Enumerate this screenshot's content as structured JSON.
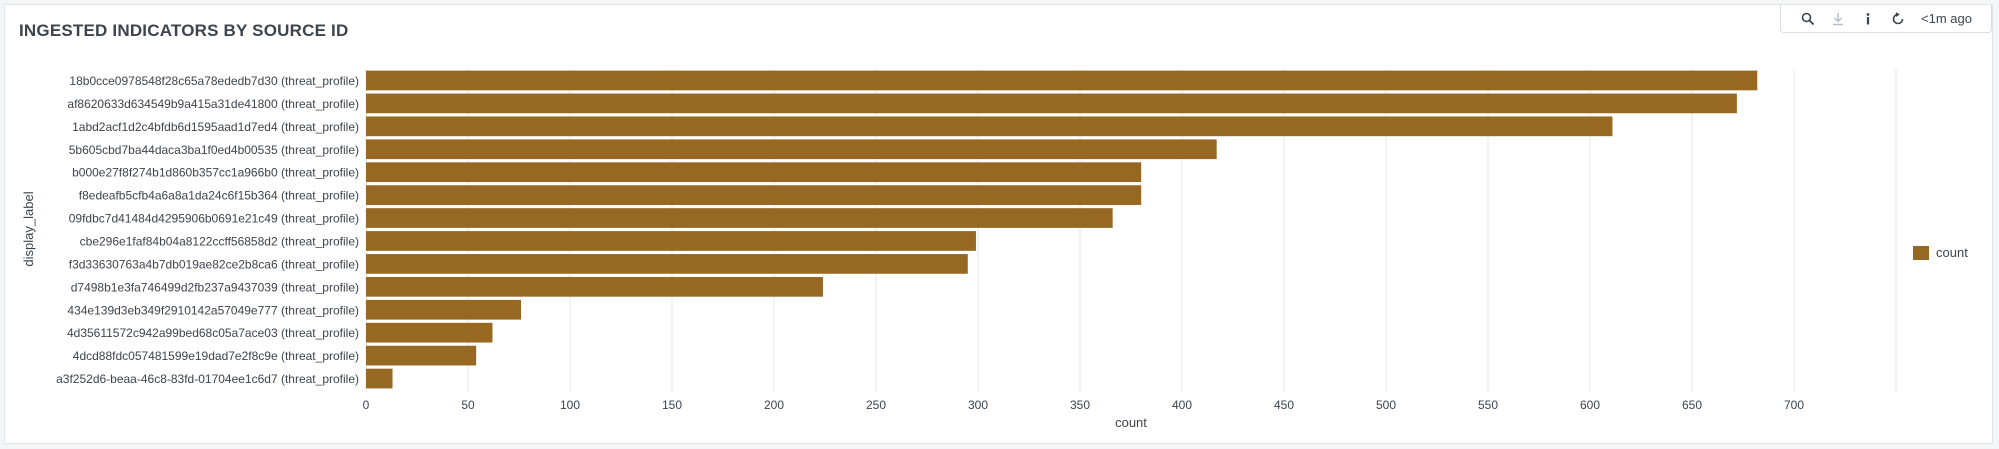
{
  "panel": {
    "title": "INGESTED INDICATORS BY SOURCE ID"
  },
  "toolbar": {
    "buttons": [
      "search-icon",
      "download-icon",
      "info-icon",
      "refresh-icon"
    ],
    "time_label": "<1m ago"
  },
  "colors": {
    "bar": "#976822",
    "grid": "#e4e6ea",
    "axis_text": "#3c444d"
  },
  "legend": {
    "label": "count"
  },
  "chart_data": {
    "type": "bar",
    "orientation": "horizontal",
    "title": "INGESTED INDICATORS BY SOURCE ID",
    "xlabel": "count",
    "ylabel": "display_label",
    "xlim": [
      0,
      750
    ],
    "xticks": [
      0,
      50,
      100,
      150,
      200,
      250,
      300,
      350,
      400,
      450,
      500,
      550,
      600,
      650,
      700
    ],
    "grid": "vertical",
    "legend_position": "right",
    "categories": [
      "18b0cce0978548f28c65a78ededb7d30 (threat_profile)",
      "af8620633d634549b9a415a31de41800 (threat_profile)",
      "1abd2acf1d2c4bfdb6d1595aad1d7ed4 (threat_profile)",
      "5b605cbd7ba44daca3ba1f0ed4b00535 (threat_profile)",
      "b000e27f8f274b1d860b357cc1a966b0 (threat_profile)",
      "f8edeafb5cfb4a6a8a1da24c6f15b364 (threat_profile)",
      "09fdbc7d41484d4295906b0691e21c49 (threat_profile)",
      "cbe296e1faf84b04a8122ccff56858d2 (threat_profile)",
      "f3d33630763a4b7db019ae82ce2b8ca6 (threat_profile)",
      "d7498b1e3fa746499d2fb237a9437039 (threat_profile)",
      "434e139d3eb349f2910142a57049e777 (threat_profile)",
      "4d35611572c942a99bed68c05a7ace03 (threat_profile)",
      "4dcd88fdc057481599e19dad7e2f8c9e (threat_profile)",
      "a3f252d6-beaa-46c8-83fd-01704ee1c6d7 (threat_profile)"
    ],
    "series": [
      {
        "name": "count",
        "values": [
          682,
          672,
          611,
          417,
          380,
          380,
          366,
          299,
          295,
          224,
          76,
          62,
          54,
          13
        ]
      }
    ]
  }
}
